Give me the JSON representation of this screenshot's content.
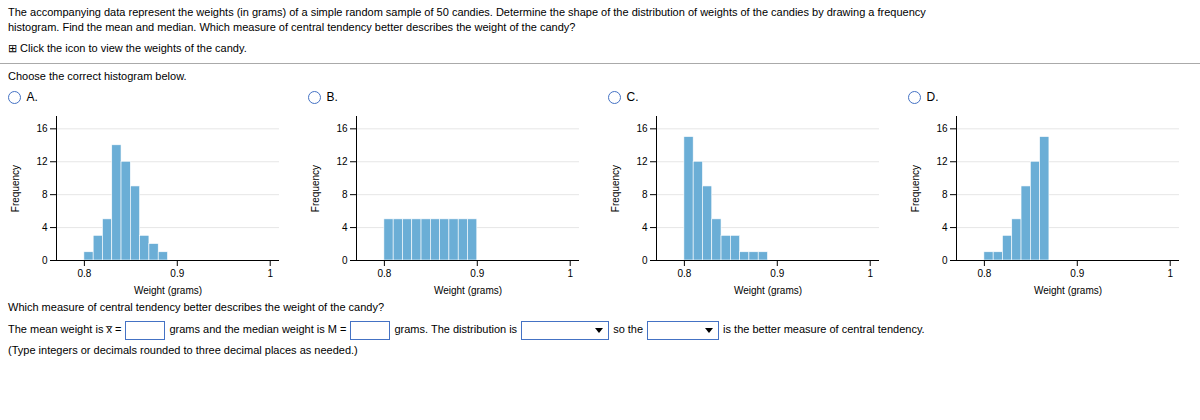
{
  "annotations": [
    "The accompanying data represent the weights (in grams) of a simple random sample of 50 candies. Determine the shape of the distribution of weights of the candies by drawing a frequency",
    "histogram. Find the mean and median. Which measure of central tendency better describes the weight of the candy?",
    "⊞  Click the icon to view the weights of the candy.",
    "Choose the correct histogram below.",
    "Which measure of central tendency better describes the weight of the candy?",
    "The mean weight is x̅ =",
    "grams and the median weight is M =",
    "grams. The distribution is",
    "so the",
    "is the better measure of central tendency.",
    "(Type integers or decimals rounded to three decimal places as needed.)"
  ],
  "chart_data": [
    {
      "type": "histogram",
      "title": "A.",
      "xlabel": "Weight (grams)",
      "ylabel": "Frequency",
      "bins": [
        0.8,
        0.81,
        0.82,
        0.83,
        0.84,
        0.85,
        0.86,
        0.87,
        0.88,
        0.89,
        0.9
      ],
      "values": [
        1,
        3,
        5,
        14,
        12,
        9,
        3,
        2,
        1,
        0
      ],
      "color": "#6baed6",
      "xlim": [
        0.77,
        1.01
      ],
      "ylim": [
        0,
        17.5
      ],
      "xticks": [
        0.8,
        0.9,
        1
      ],
      "yticks": [
        0,
        4,
        8,
        12,
        16
      ],
      "grid": true
    },
    {
      "type": "histogram",
      "title": "B.",
      "xlabel": "Weight (grams)",
      "ylabel": "Frequency",
      "bins": [
        0.8,
        0.81,
        0.82,
        0.83,
        0.84,
        0.85,
        0.86,
        0.87,
        0.88,
        0.89,
        0.9
      ],
      "values": [
        5,
        5,
        5,
        5,
        5,
        5,
        5,
        5,
        5,
        5
      ],
      "color": "#6baed6",
      "xlim": [
        0.77,
        1.01
      ],
      "ylim": [
        0,
        17.5
      ],
      "xticks": [
        0.8,
        0.9,
        1
      ],
      "yticks": [
        0,
        4,
        8,
        12,
        16
      ],
      "grid": true
    },
    {
      "type": "histogram",
      "title": "C.",
      "xlabel": "Weight (grams)",
      "ylabel": "Frequency",
      "bins": [
        0.8,
        0.81,
        0.82,
        0.83,
        0.84,
        0.85,
        0.86,
        0.87,
        0.88,
        0.89,
        0.9
      ],
      "values": [
        15,
        12,
        9,
        5,
        3,
        3,
        1,
        1,
        1,
        0
      ],
      "color": "#6baed6",
      "xlim": [
        0.77,
        1.01
      ],
      "ylim": [
        0,
        17.5
      ],
      "xticks": [
        0.8,
        0.9,
        1
      ],
      "yticks": [
        0,
        4,
        8,
        12,
        16
      ],
      "grid": true
    },
    {
      "type": "histogram",
      "title": "D.",
      "xlabel": "Weight (grams)",
      "ylabel": "Frequency",
      "bins": [
        0.8,
        0.81,
        0.82,
        0.83,
        0.84,
        0.85,
        0.86,
        0.87,
        0.88,
        0.89,
        0.9
      ],
      "values": [
        1,
        1,
        3,
        5,
        9,
        12,
        15,
        0,
        0,
        0
      ],
      "color": "#6baed6",
      "xlim": [
        0.77,
        1.01
      ],
      "ylim": [
        0,
        17.5
      ],
      "xticks": [
        0.8,
        0.9,
        1
      ],
      "yticks": [
        0,
        4,
        8,
        12,
        16
      ],
      "grid": true
    }
  ]
}
